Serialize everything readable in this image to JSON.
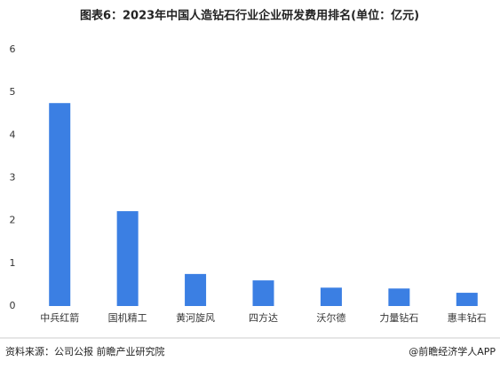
{
  "chart_data": {
    "type": "bar",
    "title": "图表6：2023年中国人造钻石行业企业研发费用排名(单位：亿元)",
    "categories": [
      "中兵红箭",
      "国机精工",
      "黄河旋风",
      "四方达",
      "沃尔德",
      "力量钻石",
      "惠丰钻石"
    ],
    "values": [
      4.75,
      2.22,
      0.75,
      0.6,
      0.43,
      0.41,
      0.31
    ],
    "color": "#3b7fe3",
    "ylim": [
      0,
      6
    ],
    "yticks": [
      0,
      1,
      2,
      3,
      4,
      5,
      6
    ],
    "grid": false,
    "source": "资料来源：公司公报 前瞻产业研究院",
    "credit": "@前瞻经济学人APP"
  }
}
